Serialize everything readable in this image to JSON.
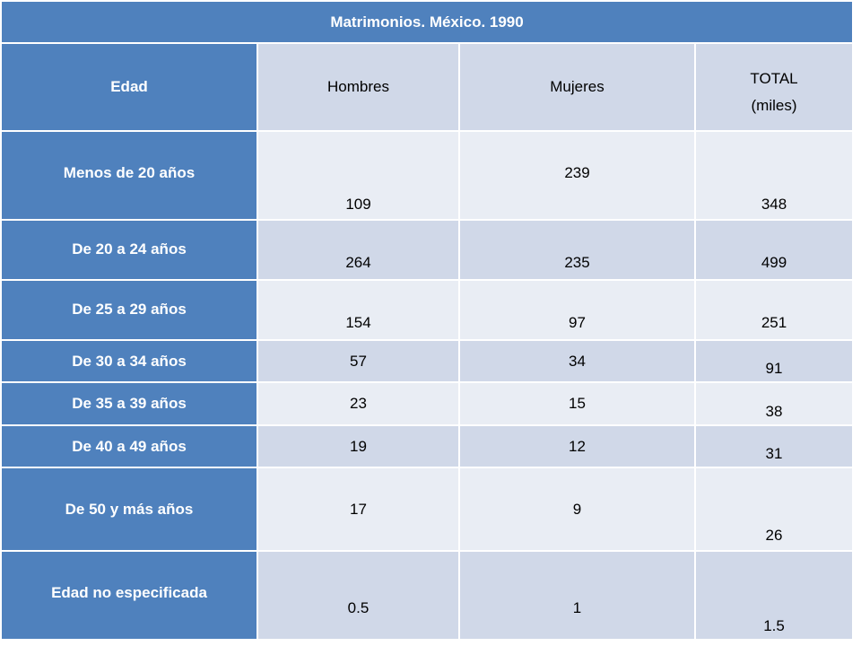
{
  "table": {
    "title": "Matrimonios. México. 1990",
    "headers": {
      "edad": "Edad",
      "hombres": "Hombres",
      "mujeres": "Mujeres",
      "total_line1": "TOTAL",
      "total_line2": "(miles)"
    },
    "rows": [
      {
        "edad": "Menos de 20 años",
        "hombres": "109",
        "mujeres": "239",
        "total": "348"
      },
      {
        "edad": "De 20 a 24 años",
        "hombres": "264",
        "mujeres": "235",
        "total": "499"
      },
      {
        "edad": "De 25 a 29 años",
        "hombres": "154",
        "mujeres": "97",
        "total": "251"
      },
      {
        "edad": "De 30 a 34 años",
        "hombres": "57",
        "mujeres": "34",
        "total": "91"
      },
      {
        "edad": "De 35 a 39 años",
        "hombres": "23",
        "mujeres": "15",
        "total": "38"
      },
      {
        "edad": "De 40 a 49 años",
        "hombres": "19",
        "mujeres": "12",
        "total": "31"
      },
      {
        "edad": "De 50 y más años",
        "hombres": "17",
        "mujeres": "9",
        "total": "26"
      },
      {
        "edad": "Edad no especificada",
        "hombres": "0.5",
        "mujeres": "1",
        "total": "1.5"
      }
    ]
  },
  "colors": {
    "header_blue": "#4f81bd",
    "band_light": "#e9edf4",
    "band_dark": "#d0d8e8",
    "text_white": "#ffffff"
  }
}
